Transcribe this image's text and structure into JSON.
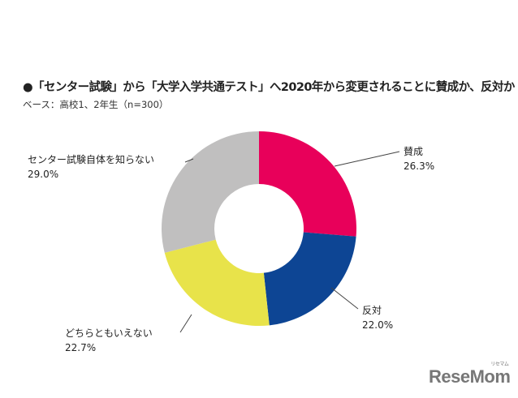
{
  "chart_data": {
    "type": "pie",
    "donut": true,
    "title": "●「センター試験」から「大学入学共通テスト」へ2020年から変更されることに賛成か、反対か",
    "subtitle": "ベース：高校1、2年生（n=300）",
    "unit": "%",
    "categories": [
      "賛成",
      "反対",
      "どちらともいえない",
      "センター試験自体を知らない"
    ],
    "values": [
      26.3,
      22.0,
      22.7,
      29.0
    ],
    "value_labels": [
      "26.3%",
      "22.0%",
      "22.7%",
      "29.0%"
    ],
    "colors": [
      "#e8005a",
      "#0d4594",
      "#e8e34a",
      "#c0bfbf"
    ],
    "start": "top",
    "direction": "clockwise"
  },
  "logo": {
    "text": "ReseMom",
    "kana": "リセマム"
  }
}
